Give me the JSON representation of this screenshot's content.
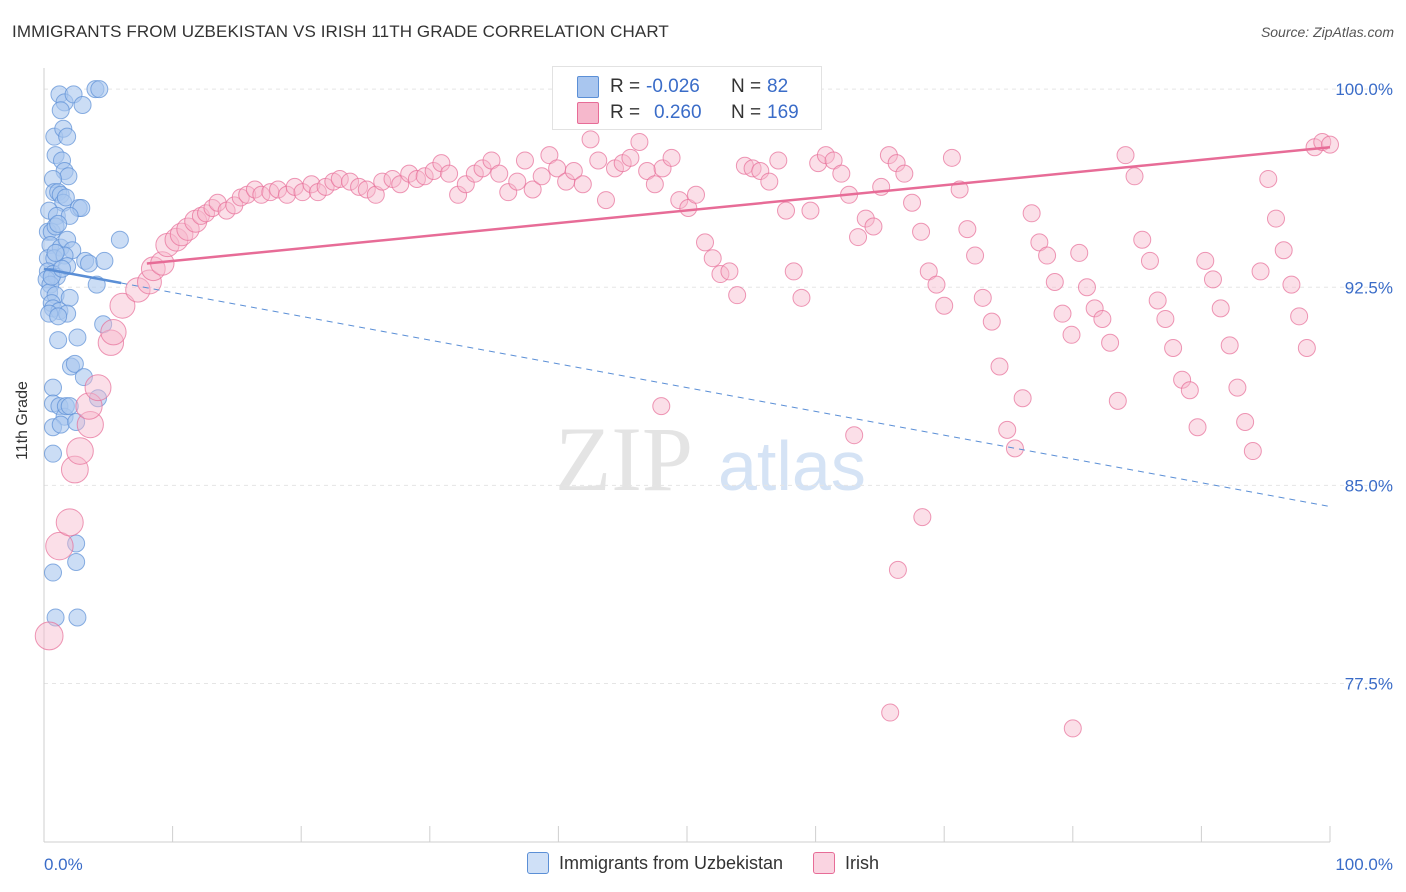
{
  "title": "IMMIGRANTS FROM UZBEKISTAN VS IRISH 11TH GRADE CORRELATION CHART",
  "source": "Source: ZipAtlas.com",
  "watermark": {
    "zip": "ZIP",
    "atlas": "atlas"
  },
  "colors": {
    "blue": "#5b8fd6",
    "blue_fill": "#a9c6ef",
    "pink": "#e76c97",
    "pink_fill": "#f6b8cc",
    "grid": "#e5e5e5",
    "tick_label": "#3a6cc8"
  },
  "legend": {
    "r_label": "R =",
    "n_label": "N =",
    "rows": [
      {
        "r": "-0.026",
        "n": "82"
      },
      {
        "r": "0.260",
        "n": "169"
      }
    ]
  },
  "chart_data": {
    "type": "scatter",
    "xlabel": "",
    "ylabel": "11th Grade",
    "xlim": [
      0,
      100
    ],
    "ylim": [
      71.5,
      100.8
    ],
    "x_tick_labels": [
      "0.0%",
      "100.0%"
    ],
    "y_ticks": [
      {
        "value": 100.0,
        "label": "100.0%"
      },
      {
        "value": 92.5,
        "label": "92.5%"
      },
      {
        "value": 85.0,
        "label": "85.0%"
      },
      {
        "value": 77.5,
        "label": "77.5%"
      }
    ],
    "grid": true,
    "legend_position": "top-center",
    "series": [
      {
        "name": "Immigrants from Uzbekistan",
        "color": "#5b8fd6",
        "trend": {
          "x0": 0,
          "y0": 93.2,
          "x1": 100,
          "y1": 84.2,
          "solid_until": 6
        },
        "points": [
          [
            0.8,
            98.2
          ],
          [
            1.2,
            99.8
          ],
          [
            1.6,
            99.5
          ],
          [
            2.3,
            99.8
          ],
          [
            3.0,
            99.4
          ],
          [
            4.0,
            100.0
          ],
          [
            4.3,
            100.0
          ],
          [
            1.3,
            99.2
          ],
          [
            1.5,
            98.5
          ],
          [
            1.8,
            98.2
          ],
          [
            0.9,
            97.5
          ],
          [
            1.4,
            97.3
          ],
          [
            1.6,
            96.9
          ],
          [
            1.9,
            96.7
          ],
          [
            0.7,
            96.6
          ],
          [
            0.8,
            96.1
          ],
          [
            1.1,
            96.1
          ],
          [
            1.3,
            96.0
          ],
          [
            1.5,
            95.7
          ],
          [
            1.7,
            95.9
          ],
          [
            2.7,
            95.5
          ],
          [
            2.9,
            95.5
          ],
          [
            0.4,
            95.4
          ],
          [
            1.0,
            95.2
          ],
          [
            2.0,
            95.2
          ],
          [
            0.3,
            94.6
          ],
          [
            0.6,
            94.6
          ],
          [
            0.9,
            94.8
          ],
          [
            5.9,
            94.3
          ],
          [
            0.5,
            94.1
          ],
          [
            1.3,
            94.0
          ],
          [
            1.8,
            94.3
          ],
          [
            2.2,
            93.9
          ],
          [
            0.3,
            93.6
          ],
          [
            0.8,
            93.6
          ],
          [
            1.6,
            93.7
          ],
          [
            3.2,
            93.5
          ],
          [
            3.5,
            93.4
          ],
          [
            4.7,
            93.5
          ],
          [
            0.3,
            93.1
          ],
          [
            0.7,
            93.0
          ],
          [
            1.0,
            92.9
          ],
          [
            1.8,
            93.3
          ],
          [
            0.2,
            92.8
          ],
          [
            0.5,
            92.6
          ],
          [
            4.1,
            92.6
          ],
          [
            0.4,
            92.3
          ],
          [
            0.9,
            92.2
          ],
          [
            2.0,
            92.1
          ],
          [
            0.6,
            91.9
          ],
          [
            0.7,
            91.7
          ],
          [
            1.2,
            91.6
          ],
          [
            1.8,
            91.5
          ],
          [
            0.4,
            91.5
          ],
          [
            1.1,
            91.4
          ],
          [
            4.6,
            91.1
          ],
          [
            1.1,
            90.5
          ],
          [
            2.6,
            90.6
          ],
          [
            2.1,
            89.5
          ],
          [
            2.4,
            89.6
          ],
          [
            3.1,
            89.1
          ],
          [
            0.7,
            88.7
          ],
          [
            0.7,
            88.1
          ],
          [
            1.2,
            88.0
          ],
          [
            1.6,
            87.6
          ],
          [
            1.7,
            88.0
          ],
          [
            2.0,
            88.0
          ],
          [
            4.2,
            88.3
          ],
          [
            0.7,
            87.2
          ],
          [
            1.3,
            87.3
          ],
          [
            2.5,
            87.4
          ],
          [
            0.7,
            86.2
          ],
          [
            2.5,
            82.8
          ],
          [
            2.5,
            82.1
          ],
          [
            0.7,
            81.7
          ],
          [
            2.6,
            80.0
          ],
          [
            0.9,
            80.0
          ],
          [
            0.6,
            92.9
          ],
          [
            1.4,
            93.2
          ],
          [
            0.9,
            93.8
          ],
          [
            1.1,
            94.9
          ]
        ]
      },
      {
        "name": "Irish",
        "color": "#e76c97",
        "trend": {
          "x0": 8,
          "y0": 93.4,
          "x1": 100,
          "y1": 97.8
        },
        "points": [
          [
            0.4,
            79.3
          ],
          [
            1.2,
            82.7
          ],
          [
            2.0,
            83.6
          ],
          [
            2.4,
            85.6
          ],
          [
            2.8,
            86.3
          ],
          [
            3.6,
            87.3
          ],
          [
            3.5,
            88.0
          ],
          [
            4.2,
            88.7
          ],
          [
            5.2,
            90.4
          ],
          [
            5.4,
            90.8
          ],
          [
            6.1,
            91.8
          ],
          [
            7.3,
            92.4
          ],
          [
            8.2,
            92.7
          ],
          [
            8.5,
            93.2
          ],
          [
            9.2,
            93.4
          ],
          [
            9.6,
            94.1
          ],
          [
            10.3,
            94.3
          ],
          [
            10.7,
            94.5
          ],
          [
            11.2,
            94.7
          ],
          [
            11.8,
            95.0
          ],
          [
            12.2,
            95.2
          ],
          [
            12.6,
            95.3
          ],
          [
            13.1,
            95.5
          ],
          [
            13.5,
            95.7
          ],
          [
            14.2,
            95.4
          ],
          [
            14.8,
            95.6
          ],
          [
            15.3,
            95.9
          ],
          [
            15.8,
            96.0
          ],
          [
            16.4,
            96.2
          ],
          [
            16.9,
            96.0
          ],
          [
            17.6,
            96.1
          ],
          [
            18.2,
            96.2
          ],
          [
            18.9,
            96.0
          ],
          [
            19.5,
            96.3
          ],
          [
            20.1,
            96.1
          ],
          [
            20.8,
            96.4
          ],
          [
            21.3,
            96.1
          ],
          [
            21.9,
            96.3
          ],
          [
            22.5,
            96.5
          ],
          [
            23.0,
            96.6
          ],
          [
            23.8,
            96.5
          ],
          [
            24.5,
            96.3
          ],
          [
            25.1,
            96.2
          ],
          [
            25.8,
            96.0
          ],
          [
            26.3,
            96.5
          ],
          [
            27.1,
            96.6
          ],
          [
            27.7,
            96.4
          ],
          [
            28.4,
            96.8
          ],
          [
            29.0,
            96.6
          ],
          [
            29.6,
            96.7
          ],
          [
            30.3,
            96.9
          ],
          [
            30.9,
            97.2
          ],
          [
            31.5,
            96.8
          ],
          [
            32.2,
            96.0
          ],
          [
            32.8,
            96.4
          ],
          [
            33.5,
            96.8
          ],
          [
            34.1,
            97.0
          ],
          [
            34.8,
            97.3
          ],
          [
            35.4,
            96.8
          ],
          [
            36.1,
            96.1
          ],
          [
            36.8,
            96.5
          ],
          [
            37.4,
            97.3
          ],
          [
            38.0,
            96.2
          ],
          [
            38.7,
            96.7
          ],
          [
            39.3,
            97.5
          ],
          [
            39.9,
            97.0
          ],
          [
            40.6,
            96.5
          ],
          [
            41.2,
            96.9
          ],
          [
            41.9,
            96.4
          ],
          [
            42.5,
            98.1
          ],
          [
            43.1,
            97.3
          ],
          [
            43.7,
            95.8
          ],
          [
            44.4,
            97.0
          ],
          [
            45.0,
            97.2
          ],
          [
            45.6,
            97.4
          ],
          [
            46.3,
            98.0
          ],
          [
            46.9,
            96.9
          ],
          [
            47.5,
            96.4
          ],
          [
            48.1,
            97.0
          ],
          [
            48.8,
            97.4
          ],
          [
            49.4,
            95.8
          ],
          [
            50.1,
            95.5
          ],
          [
            50.7,
            96.0
          ],
          [
            51.4,
            94.2
          ],
          [
            52.0,
            93.6
          ],
          [
            52.6,
            93.0
          ],
          [
            53.3,
            93.1
          ],
          [
            53.9,
            92.2
          ],
          [
            54.5,
            97.1
          ],
          [
            55.1,
            97.0
          ],
          [
            55.7,
            96.9
          ],
          [
            56.4,
            96.5
          ],
          [
            57.1,
            97.3
          ],
          [
            57.7,
            95.4
          ],
          [
            58.3,
            93.1
          ],
          [
            58.9,
            92.1
          ],
          [
            59.6,
            95.4
          ],
          [
            60.2,
            97.2
          ],
          [
            60.8,
            97.5
          ],
          [
            61.4,
            97.3
          ],
          [
            62.0,
            96.8
          ],
          [
            62.6,
            96.0
          ],
          [
            63.3,
            94.4
          ],
          [
            63.9,
            95.1
          ],
          [
            64.5,
            94.8
          ],
          [
            65.1,
            96.3
          ],
          [
            65.7,
            97.5
          ],
          [
            66.3,
            97.2
          ],
          [
            66.9,
            96.8
          ],
          [
            67.5,
            95.7
          ],
          [
            68.2,
            94.6
          ],
          [
            68.8,
            93.1
          ],
          [
            69.4,
            92.6
          ],
          [
            70.0,
            91.8
          ],
          [
            70.6,
            97.4
          ],
          [
            71.2,
            96.2
          ],
          [
            71.8,
            94.7
          ],
          [
            72.4,
            93.7
          ],
          [
            73.0,
            92.1
          ],
          [
            73.7,
            91.2
          ],
          [
            74.3,
            89.5
          ],
          [
            74.9,
            87.1
          ],
          [
            75.5,
            86.4
          ],
          [
            76.1,
            88.3
          ],
          [
            76.8,
            95.3
          ],
          [
            77.4,
            94.2
          ],
          [
            78.0,
            93.7
          ],
          [
            78.6,
            92.7
          ],
          [
            79.2,
            91.5
          ],
          [
            79.9,
            90.7
          ],
          [
            80.5,
            93.8
          ],
          [
            81.1,
            92.5
          ],
          [
            81.7,
            91.7
          ],
          [
            82.3,
            91.3
          ],
          [
            82.9,
            90.4
          ],
          [
            83.5,
            88.2
          ],
          [
            84.1,
            97.5
          ],
          [
            84.8,
            96.7
          ],
          [
            85.4,
            94.3
          ],
          [
            86.0,
            93.5
          ],
          [
            86.6,
            92.0
          ],
          [
            87.2,
            91.3
          ],
          [
            87.8,
            90.2
          ],
          [
            88.5,
            89.0
          ],
          [
            89.1,
            88.6
          ],
          [
            89.7,
            87.2
          ],
          [
            90.3,
            93.5
          ],
          [
            90.9,
            92.8
          ],
          [
            91.5,
            91.7
          ],
          [
            92.2,
            90.3
          ],
          [
            92.8,
            88.7
          ],
          [
            93.4,
            87.4
          ],
          [
            94.0,
            86.3
          ],
          [
            94.6,
            93.1
          ],
          [
            95.2,
            96.6
          ],
          [
            95.8,
            95.1
          ],
          [
            96.4,
            93.9
          ],
          [
            97.0,
            92.6
          ],
          [
            97.6,
            91.4
          ],
          [
            98.2,
            90.2
          ],
          [
            98.8,
            97.8
          ],
          [
            99.4,
            98.0
          ],
          [
            100.0,
            97.9
          ],
          [
            68.3,
            83.8
          ],
          [
            66.4,
            81.8
          ],
          [
            65.8,
            76.4
          ],
          [
            80.0,
            75.8
          ],
          [
            48.0,
            88.0
          ],
          [
            63.0,
            86.9
          ]
        ]
      }
    ]
  }
}
